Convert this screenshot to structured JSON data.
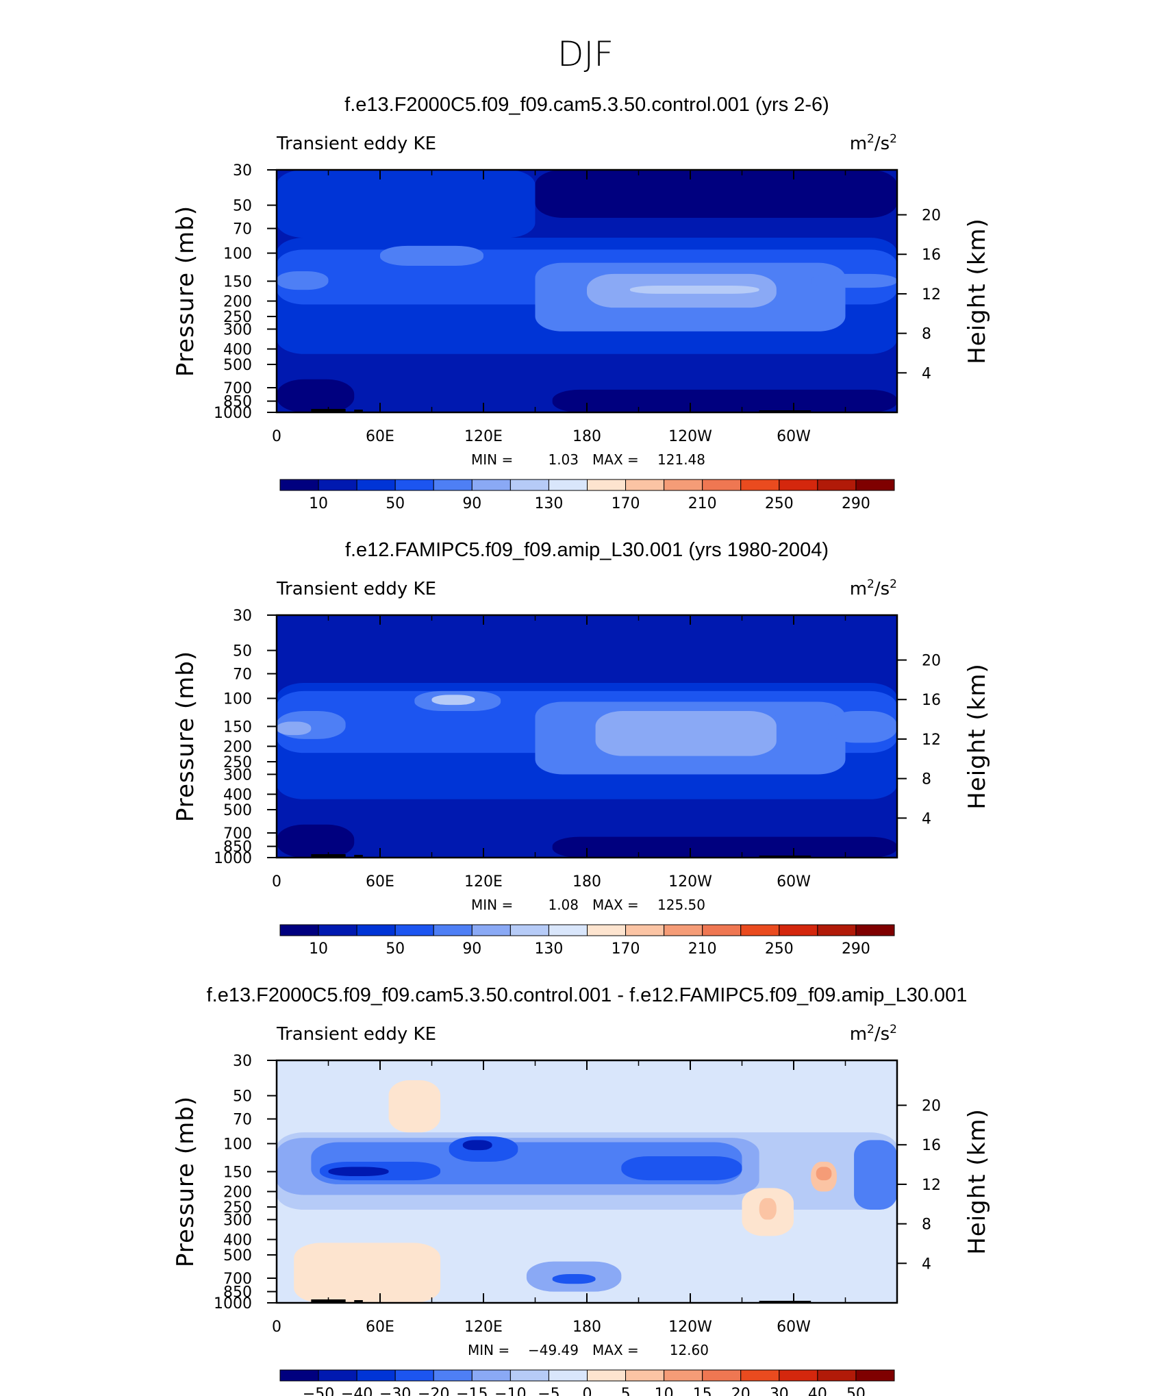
{
  "figure": {
    "title": "DJF",
    "colors": {
      "abs_levels": [
        "#00007f",
        "#0019b0",
        "#0034d6",
        "#1c55f0",
        "#4e7ff5",
        "#8aa9f5",
        "#b6cbf7",
        "#d9e6fb",
        "#fde4cf",
        "#fbc4a4",
        "#f59c77",
        "#ef7752",
        "#ea4b1f",
        "#d4270d",
        "#b11a08",
        "#7f0000"
      ],
      "diff_levels": [
        "#00007f",
        "#0019b0",
        "#0034d6",
        "#1c55f0",
        "#4e7ff5",
        "#8aa9f5",
        "#b6cbf7",
        "#d9e6fb",
        "#fde4cf",
        "#fbc4a4",
        "#f59c77",
        "#ef7752",
        "#ea4b1f",
        "#d4270d",
        "#b11a08",
        "#7f0000"
      ],
      "topography": "#000000"
    }
  },
  "chart_data": [
    {
      "type": "heatmap",
      "title": "f.e13.F2000C5.f09_f09.cam5.3.50.control.001 (yrs 2-6)",
      "left_string": "Transient eddy KE",
      "units": {
        "base": "m",
        "exp1": "2",
        "sep": "/s",
        "exp2": "2"
      },
      "xlabel": "",
      "ylabel": "Pressure (mb)",
      "ylabel_right": "Height (km)",
      "x_ticks": [
        "0",
        "60E",
        "120E",
        "180",
        "120W",
        "60W"
      ],
      "x_range": [
        0,
        360
      ],
      "y_ticks": [
        "30",
        "50",
        "70",
        "100",
        "150",
        "200",
        "250",
        "300",
        "400",
        "500",
        "700",
        "850",
        "1000"
      ],
      "y_range": [
        1000,
        30
      ],
      "y_log": true,
      "right_ticks": [
        "20",
        "16",
        "12",
        "8",
        "4"
      ],
      "stats": {
        "min_label": "MIN =",
        "min": "1.03",
        "max_label": "MAX =",
        "max": "121.48"
      },
      "colorbar_labels": [
        "10",
        "50",
        "90",
        "130",
        "170",
        "210",
        "250",
        "290"
      ],
      "field_levels": [
        {
          "x": [
            0,
            360
          ],
          "y": [
            1000,
            30
          ],
          "level": 1
        },
        {
          "x": [
            0,
            150
          ],
          "y": [
            80,
            30
          ],
          "level": 2
        },
        {
          "x": [
            150,
            360
          ],
          "y": [
            60,
            30
          ],
          "level": 0
        },
        {
          "x": [
            0,
            360
          ],
          "y": [
            430,
            80
          ],
          "level": 2
        },
        {
          "x": [
            0,
            360
          ],
          "y": [
            210,
            95
          ],
          "level": 3
        },
        {
          "x": [
            150,
            330
          ],
          "y": [
            310,
            115
          ],
          "level": 4
        },
        {
          "x": [
            60,
            120
          ],
          "y": [
            120,
            90
          ],
          "level": 4
        },
        {
          "x": [
            180,
            290
          ],
          "y": [
            220,
            135
          ],
          "level": 5
        },
        {
          "x": [
            205,
            280
          ],
          "y": [
            180,
            160
          ],
          "level": 6
        },
        {
          "x": [
            0,
            30
          ],
          "y": [
            170,
            130
          ],
          "level": 4
        },
        {
          "x": [
            310,
            360
          ],
          "y": [
            165,
            135
          ],
          "level": 4
        },
        {
          "x": [
            0,
            45
          ],
          "y": [
            1000,
            620
          ],
          "level": 0
        },
        {
          "x": [
            160,
            360
          ],
          "y": [
            1000,
            720
          ],
          "level": 0
        }
      ]
    },
    {
      "type": "heatmap",
      "title": "f.e12.FAMIPC5.f09_f09.amip_L30.001 (yrs 1980-2004)",
      "left_string": "Transient eddy KE",
      "units": {
        "base": "m",
        "exp1": "2",
        "sep": "/s",
        "exp2": "2"
      },
      "xlabel": "",
      "ylabel": "Pressure (mb)",
      "ylabel_right": "Height (km)",
      "x_ticks": [
        "0",
        "60E",
        "120E",
        "180",
        "120W",
        "60W"
      ],
      "x_range": [
        0,
        360
      ],
      "y_ticks": [
        "30",
        "50",
        "70",
        "100",
        "150",
        "200",
        "250",
        "300",
        "400",
        "500",
        "700",
        "850",
        "1000"
      ],
      "y_range": [
        1000,
        30
      ],
      "y_log": true,
      "right_ticks": [
        "20",
        "16",
        "12",
        "8",
        "4"
      ],
      "stats": {
        "min_label": "MIN =",
        "min": "1.08",
        "max_label": "MAX =",
        "max": "125.50"
      },
      "colorbar_labels": [
        "10",
        "50",
        "90",
        "130",
        "170",
        "210",
        "250",
        "290"
      ],
      "field_levels": [
        {
          "x": [
            0,
            360
          ],
          "y": [
            1000,
            30
          ],
          "level": 1
        },
        {
          "x": [
            0,
            360
          ],
          "y": [
            430,
            80
          ],
          "level": 2
        },
        {
          "x": [
            0,
            360
          ],
          "y": [
            220,
            90
          ],
          "level": 3
        },
        {
          "x": [
            150,
            330
          ],
          "y": [
            300,
            105
          ],
          "level": 4
        },
        {
          "x": [
            80,
            130
          ],
          "y": [
            120,
            90
          ],
          "level": 4
        },
        {
          "x": [
            0,
            40
          ],
          "y": [
            180,
            120
          ],
          "level": 4
        },
        {
          "x": [
            320,
            360
          ],
          "y": [
            190,
            120
          ],
          "level": 4
        },
        {
          "x": [
            185,
            290
          ],
          "y": [
            230,
            120
          ],
          "level": 5
        },
        {
          "x": [
            0,
            20
          ],
          "y": [
            170,
            140
          ],
          "level": 5
        },
        {
          "x": [
            90,
            115
          ],
          "y": [
            110,
            95
          ],
          "level": 6
        },
        {
          "x": [
            0,
            45
          ],
          "y": [
            1000,
            620
          ],
          "level": 0
        },
        {
          "x": [
            160,
            360
          ],
          "y": [
            1000,
            740
          ],
          "level": 0
        }
      ]
    },
    {
      "type": "heatmap",
      "title": "f.e13.F2000C5.f09_f09.cam5.3.50.control.001 - f.e12.FAMIPC5.f09_f09.amip_L30.001",
      "left_string": "Transient eddy KE",
      "units": {
        "base": "m",
        "exp1": "2",
        "sep": "/s",
        "exp2": "2"
      },
      "xlabel": "",
      "ylabel": "Pressure (mb)",
      "ylabel_right": "Height (km)",
      "x_ticks": [
        "0",
        "60E",
        "120E",
        "180",
        "120W",
        "60W"
      ],
      "x_range": [
        0,
        360
      ],
      "y_ticks": [
        "30",
        "50",
        "70",
        "100",
        "150",
        "200",
        "250",
        "300",
        "400",
        "500",
        "700",
        "850",
        "1000"
      ],
      "y_range": [
        1000,
        30
      ],
      "y_log": true,
      "right_ticks": [
        "20",
        "16",
        "12",
        "8",
        "4"
      ],
      "stats": {
        "min_label": "MIN =",
        "min": "−49.49",
        "max_label": "MAX =",
        "max": "12.60"
      },
      "colorbar_labels": [
        "−50",
        "−40",
        "−30",
        "−20",
        "−15",
        "−10",
        "−5",
        "0",
        "5",
        "10",
        "15",
        "20",
        "30",
        "40",
        "50"
      ],
      "field_levels": [
        {
          "x": [
            0,
            360
          ],
          "y": [
            1000,
            30
          ],
          "level": 7
        },
        {
          "x": [
            0,
            360
          ],
          "y": [
            260,
            85
          ],
          "level": 6
        },
        {
          "x": [
            0,
            280
          ],
          "y": [
            210,
            92
          ],
          "level": 5
        },
        {
          "x": [
            20,
            270
          ],
          "y": [
            180,
            98
          ],
          "level": 4
        },
        {
          "x": [
            25,
            95
          ],
          "y": [
            170,
            130
          ],
          "level": 3
        },
        {
          "x": [
            100,
            140
          ],
          "y": [
            130,
            90
          ],
          "level": 3
        },
        {
          "x": [
            200,
            270
          ],
          "y": [
            170,
            120
          ],
          "level": 3
        },
        {
          "x": [
            30,
            65
          ],
          "y": [
            160,
            140
          ],
          "level": 1
        },
        {
          "x": [
            108,
            125
          ],
          "y": [
            110,
            95
          ],
          "level": 1
        },
        {
          "x": [
            335,
            360
          ],
          "y": [
            260,
            95
          ],
          "level": 4
        },
        {
          "x": [
            145,
            200
          ],
          "y": [
            850,
            550
          ],
          "level": 5
        },
        {
          "x": [
            160,
            185
          ],
          "y": [
            760,
            660
          ],
          "level": 3
        },
        {
          "x": [
            65,
            95
          ],
          "y": [
            85,
            40
          ],
          "level": 8
        },
        {
          "x": [
            10,
            95
          ],
          "y": [
            1000,
            420
          ],
          "level": 8
        },
        {
          "x": [
            270,
            300
          ],
          "y": [
            380,
            190
          ],
          "level": 8
        },
        {
          "x": [
            310,
            325
          ],
          "y": [
            200,
            130
          ],
          "level": 9
        },
        {
          "x": [
            313,
            322
          ],
          "y": [
            170,
            140
          ],
          "level": 10
        },
        {
          "x": [
            280,
            290
          ],
          "y": [
            300,
            220
          ],
          "level": 9
        }
      ]
    }
  ]
}
